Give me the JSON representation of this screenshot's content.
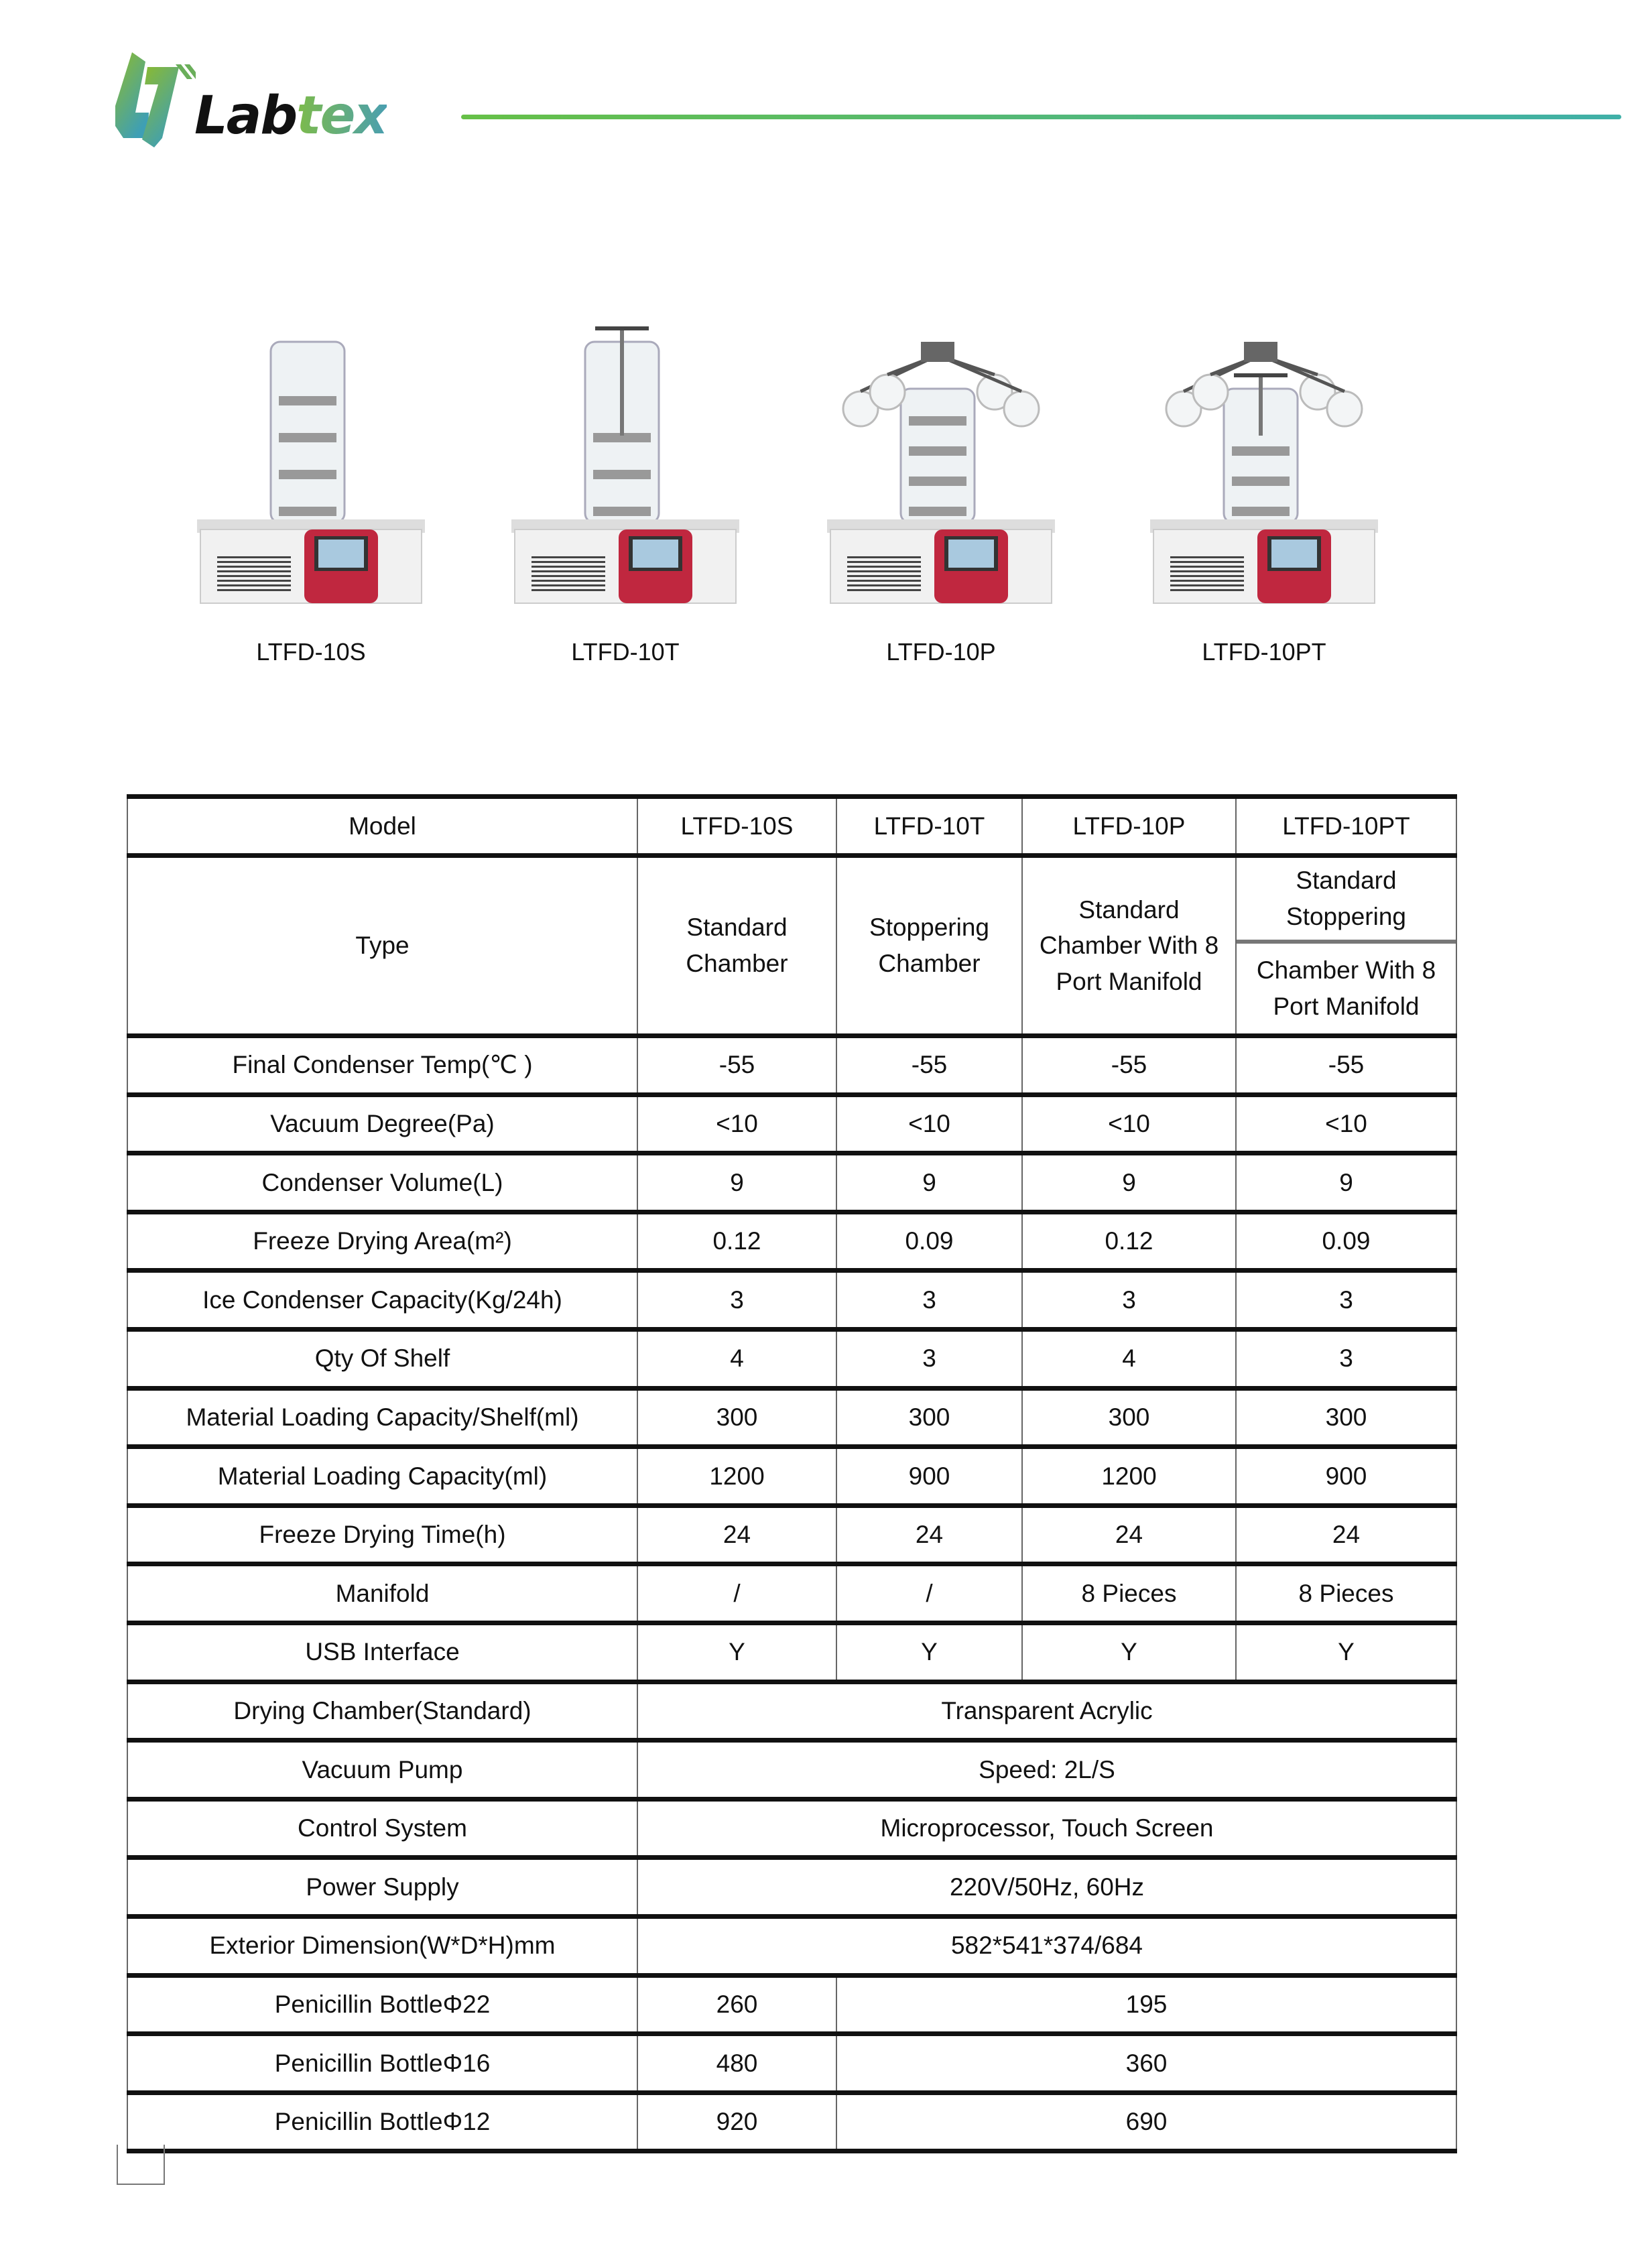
{
  "brand": {
    "logo_text_dark": "Lab",
    "logo_text_color": "tex",
    "accent_green": "#66c047",
    "accent_teal": "#3fb0a8"
  },
  "products": [
    {
      "model": "LTFD-10S",
      "variant": "standard"
    },
    {
      "model": "LTFD-10T",
      "variant": "stoppering"
    },
    {
      "model": "LTFD-10P",
      "variant": "manifold"
    },
    {
      "model": "LTFD-10PT",
      "variant": "manifold-stoppering"
    }
  ],
  "table": {
    "model_label": "Model",
    "models": [
      "LTFD-10S",
      "LTFD-10T",
      "LTFD-10P",
      "LTFD-10PT"
    ],
    "type_label": "Type",
    "types": [
      "Standard Chamber",
      "Stoppering Chamber",
      "Standard Chamber With 8 Port Manifold",
      [
        "Standard Stoppering",
        "Chamber With 8 Port Manifold"
      ]
    ],
    "rows": [
      {
        "label": "Final Condenser Temp(℃ )",
        "values": [
          "-55",
          "-55",
          "-55",
          "-55"
        ]
      },
      {
        "label": "Vacuum Degree(Pa)",
        "values": [
          "<10",
          "<10",
          "<10",
          "<10"
        ]
      },
      {
        "label": "Condenser Volume(L)",
        "values": [
          "9",
          "9",
          "9",
          "9"
        ]
      },
      {
        "label": "Freeze Drying Area(m²)",
        "values": [
          "0.12",
          "0.09",
          "0.12",
          "0.09"
        ]
      },
      {
        "label": "Ice Condenser Capacity(Kg/24h)",
        "values": [
          "3",
          "3",
          "3",
          "3"
        ]
      },
      {
        "label": "Qty Of Shelf",
        "values": [
          "4",
          "3",
          "4",
          "3"
        ]
      },
      {
        "label": "Material Loading Capacity/Shelf(ml)",
        "values": [
          "300",
          "300",
          "300",
          "300"
        ]
      },
      {
        "label": "Material Loading Capacity(ml)",
        "values": [
          "1200",
          "900",
          "1200",
          "900"
        ]
      },
      {
        "label": "Freeze Drying Time(h)",
        "values": [
          "24",
          "24",
          "24",
          "24"
        ]
      },
      {
        "label": "Manifold",
        "values": [
          "/",
          "/",
          "8 Pieces",
          "8 Pieces"
        ]
      },
      {
        "label": "USB Interface",
        "values": [
          "Y",
          "Y",
          "Y",
          "Y"
        ]
      }
    ],
    "shared_rows": [
      {
        "label": "Drying Chamber(Standard)",
        "value": "Transparent Acrylic"
      },
      {
        "label": "Vacuum Pump",
        "value": "Speed: 2L/S"
      },
      {
        "label": "Control System",
        "value": "Microprocessor, Touch Screen"
      },
      {
        "label": "Power Supply",
        "value": "220V/50Hz, 60Hz"
      },
      {
        "label": "Exterior Dimension(W*D*H)mm",
        "value": "582*541*374/684"
      }
    ],
    "bottle_rows": [
      {
        "label": "Penicillin BottleΦ22",
        "first": "260",
        "rest": "195"
      },
      {
        "label": "Penicillin BottleΦ16",
        "first": "480",
        "rest": "360"
      },
      {
        "label": "Penicillin BottleΦ12",
        "first": "920",
        "rest": "690"
      }
    ]
  }
}
